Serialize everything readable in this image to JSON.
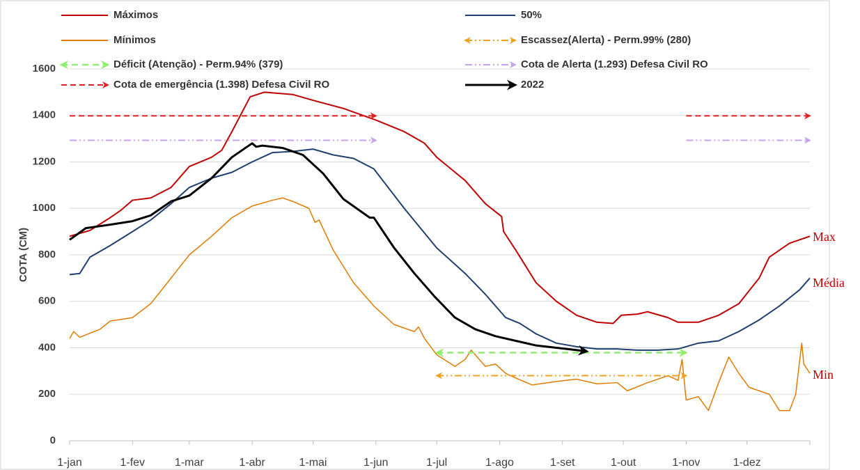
{
  "chart_data": {
    "type": "line",
    "y_label": "COTA (CM)",
    "xlim": [
      0,
      365
    ],
    "ylim": [
      0,
      1600
    ],
    "yticks": [
      0,
      200,
      400,
      600,
      800,
      1000,
      1200,
      1400,
      1600
    ],
    "xticks": [
      {
        "value": 0,
        "label": "1-jan"
      },
      {
        "value": 31,
        "label": "1-fev"
      },
      {
        "value": 59,
        "label": "1-mar"
      },
      {
        "value": 90,
        "label": "1-abr"
      },
      {
        "value": 120,
        "label": "1-mai"
      },
      {
        "value": 151,
        "label": "1-jun"
      },
      {
        "value": 181,
        "label": "1-jul"
      },
      {
        "value": 212,
        "label": "1-ago"
      },
      {
        "value": 243,
        "label": "1-set"
      },
      {
        "value": 273,
        "label": "1-out"
      },
      {
        "value": 304,
        "label": "1-nov"
      },
      {
        "value": 334,
        "label": "1-dez"
      }
    ],
    "grid": true,
    "series": [
      {
        "name": "Máximos",
        "color": "#c00000",
        "width": 2,
        "x": [
          0,
          10,
          20,
          25,
          31,
          40,
          50,
          59,
          70,
          75,
          80,
          89,
          96,
          110,
          120,
          135,
          151,
          165,
          175,
          181,
          195,
          205,
          213,
          214,
          220,
          230,
          240,
          250,
          260,
          268,
          272,
          280,
          285,
          295,
          300,
          310,
          320,
          330,
          340,
          345,
          355,
          365
        ],
        "values": [
          880,
          905,
          960,
          990,
          1035,
          1045,
          1090,
          1180,
          1220,
          1250,
          1330,
          1480,
          1500,
          1490,
          1465,
          1430,
          1380,
          1330,
          1280,
          1220,
          1120,
          1020,
          965,
          900,
          820,
          680,
          600,
          540,
          510,
          505,
          540,
          545,
          555,
          530,
          510,
          510,
          540,
          590,
          700,
          790,
          850,
          880
        ]
      },
      {
        "name": "50%",
        "color": "#1f3f6e",
        "width": 2,
        "x": [
          0,
          5,
          10,
          20,
          31,
          40,
          50,
          59,
          70,
          80,
          90,
          100,
          110,
          120,
          130,
          140,
          150,
          165,
          181,
          195,
          205,
          215,
          222,
          230,
          240,
          250,
          260,
          270,
          280,
          290,
          300,
          310,
          320,
          330,
          340,
          350,
          360,
          365
        ],
        "values": [
          715,
          720,
          790,
          840,
          900,
          950,
          1020,
          1090,
          1130,
          1155,
          1200,
          1240,
          1245,
          1255,
          1230,
          1215,
          1170,
          1000,
          830,
          720,
          630,
          530,
          505,
          460,
          420,
          405,
          395,
          395,
          390,
          390,
          395,
          420,
          430,
          470,
          520,
          580,
          650,
          700
        ]
      },
      {
        "name": "Mínimos",
        "color": "#e07b00",
        "width": 1.5,
        "x": [
          0,
          2,
          5,
          15,
          20,
          31,
          40,
          50,
          59,
          70,
          80,
          90,
          100,
          105,
          110,
          118,
          121,
          123,
          130,
          140,
          150,
          160,
          170,
          172,
          175,
          181,
          190,
          195,
          198,
          205,
          210,
          215,
          220,
          228,
          240,
          250,
          260,
          270,
          275,
          285,
          295,
          300,
          302,
          304,
          310,
          315,
          320,
          325,
          330,
          335,
          345,
          350,
          355,
          358,
          361,
          362,
          365
        ],
        "values": [
          440,
          470,
          445,
          480,
          515,
          530,
          590,
          700,
          800,
          880,
          960,
          1010,
          1035,
          1045,
          1030,
          1000,
          940,
          950,
          820,
          680,
          580,
          500,
          470,
          490,
          440,
          370,
          320,
          350,
          390,
          320,
          330,
          290,
          270,
          240,
          255,
          265,
          245,
          250,
          215,
          250,
          280,
          260,
          350,
          175,
          190,
          130,
          250,
          360,
          290,
          230,
          200,
          130,
          130,
          200,
          420,
          330,
          290
        ]
      },
      {
        "name": "Escassez(Alerta) - Perm.99% (280)",
        "color": "#f0a020",
        "width": 2,
        "dash": "10 4 2 4 2 4",
        "arrows": "both",
        "value": 280,
        "ranges": [
          [
            181,
            304
          ]
        ]
      },
      {
        "name": "Déficit (Atenção) - Perm.94% (379)",
        "color": "#90ee70",
        "width": 2.5,
        "dash": "9 6",
        "arrows": "both",
        "value": 379,
        "ranges": [
          [
            181,
            304
          ]
        ]
      },
      {
        "name": "Cota de Alerta  (1.293) Defesa Civil RO",
        "color": "#c8a0f0",
        "width": 2,
        "dash": "10 4 2 4 2 4",
        "arrows": "end",
        "value": 1293,
        "ranges": [
          [
            0,
            151
          ],
          [
            304,
            365
          ]
        ]
      },
      {
        "name": "Cota de emergência (1.398) Defesa Civil RO",
        "color": "#e02020",
        "width": 2,
        "dash": "8 5",
        "arrows": "end",
        "value": 1398,
        "ranges": [
          [
            0,
            151
          ],
          [
            304,
            365
          ]
        ]
      },
      {
        "name": "2022",
        "color": "#000000",
        "width": 3,
        "arrows": "end",
        "x": [
          0,
          8,
          20,
          31,
          40,
          50,
          59,
          70,
          80,
          90,
          92,
          95,
          105,
          115,
          125,
          135,
          148,
          150,
          160,
          170,
          180,
          190,
          200,
          210,
          220,
          230,
          245,
          255
        ],
        "values": [
          865,
          915,
          930,
          945,
          970,
          1030,
          1055,
          1130,
          1220,
          1280,
          1265,
          1270,
          1260,
          1230,
          1150,
          1040,
          960,
          960,
          830,
          720,
          620,
          530,
          480,
          450,
          430,
          410,
          395,
          385
        ]
      }
    ],
    "annotations": [
      {
        "text": "Max",
        "x": 365,
        "y": 880
      },
      {
        "text": "Média",
        "x": 365,
        "y": 680
      },
      {
        "text": "Min",
        "x": 365,
        "y": 280
      }
    ]
  }
}
